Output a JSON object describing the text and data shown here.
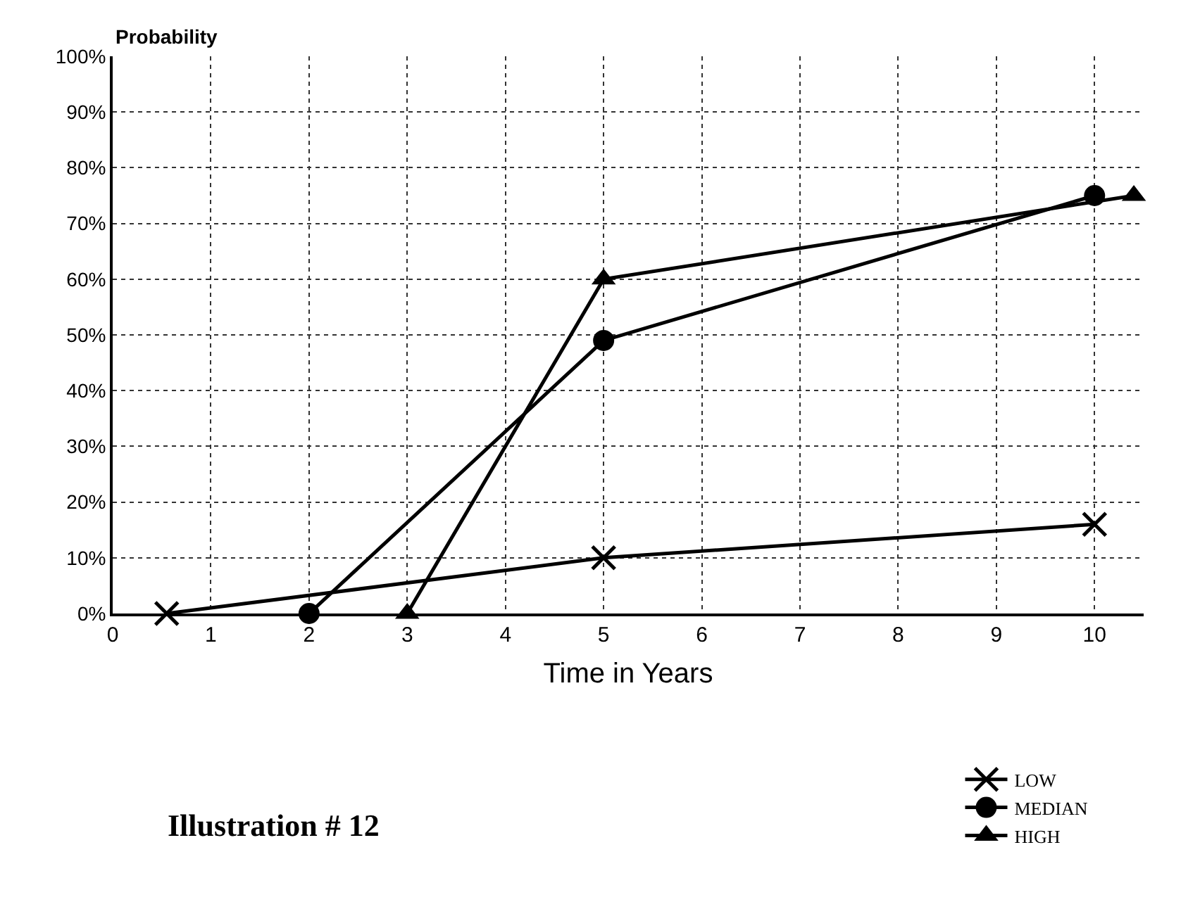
{
  "chart_data": {
    "type": "line",
    "xlabel": "Time in Years",
    "ylabel": "Probability",
    "xlim": [
      0,
      10.5
    ],
    "xticks": [
      0,
      1,
      2,
      3,
      4,
      5,
      6,
      7,
      8,
      9,
      10
    ],
    "ylim": [
      0,
      100
    ],
    "yticks": [
      {
        "value": 0,
        "label": "0%"
      },
      {
        "value": 10,
        "label": "10%"
      },
      {
        "value": 20,
        "label": "20%"
      },
      {
        "value": 30,
        "label": "30%"
      },
      {
        "value": 40,
        "label": "40%"
      },
      {
        "value": 50,
        "label": "50%"
      },
      {
        "value": 60,
        "label": "60%"
      },
      {
        "value": 70,
        "label": "70%"
      },
      {
        "value": 80,
        "label": "80%"
      },
      {
        "value": 90,
        "label": "90%"
      },
      {
        "value": 100,
        "label": "100%"
      }
    ],
    "grid": true,
    "legend": "bottom right",
    "line_style": "solid",
    "series": [
      {
        "name": "LOW",
        "color": "#000000",
        "marker": "cross",
        "x": [
          0.55,
          5,
          10
        ],
        "values": [
          0,
          10,
          16
        ]
      },
      {
        "name": "MEDIAN",
        "color": "#000000",
        "marker": "circle",
        "x": [
          2,
          5,
          10
        ],
        "values": [
          0,
          49,
          75
        ]
      },
      {
        "name": "HIGH",
        "color": "#000000",
        "marker": "triangle",
        "x": [
          3,
          5,
          10.4
        ],
        "values": [
          0,
          60,
          75
        ]
      }
    ],
    "annotations": [
      "Illustration # 12"
    ]
  }
}
